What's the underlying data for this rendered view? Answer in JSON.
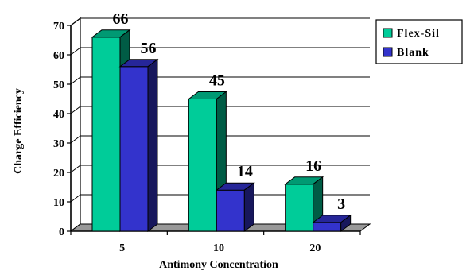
{
  "chart_data": {
    "type": "bar",
    "style": "3d-clustered-column",
    "categories": [
      "5",
      "10",
      "20"
    ],
    "series": [
      {
        "name": "Flex-Sil",
        "values": [
          66,
          45,
          16
        ],
        "color": "#00CC99"
      },
      {
        "name": "Blank",
        "values": [
          56,
          14,
          3
        ],
        "color": "#3333CC"
      }
    ],
    "title": "",
    "xlabel": "Antimony Concentration",
    "ylabel": "Charge Efficiency",
    "ylim": [
      0,
      70
    ],
    "yticks": [
      0,
      10,
      20,
      30,
      40,
      50,
      60,
      70
    ],
    "grid": true,
    "legend": "right"
  }
}
